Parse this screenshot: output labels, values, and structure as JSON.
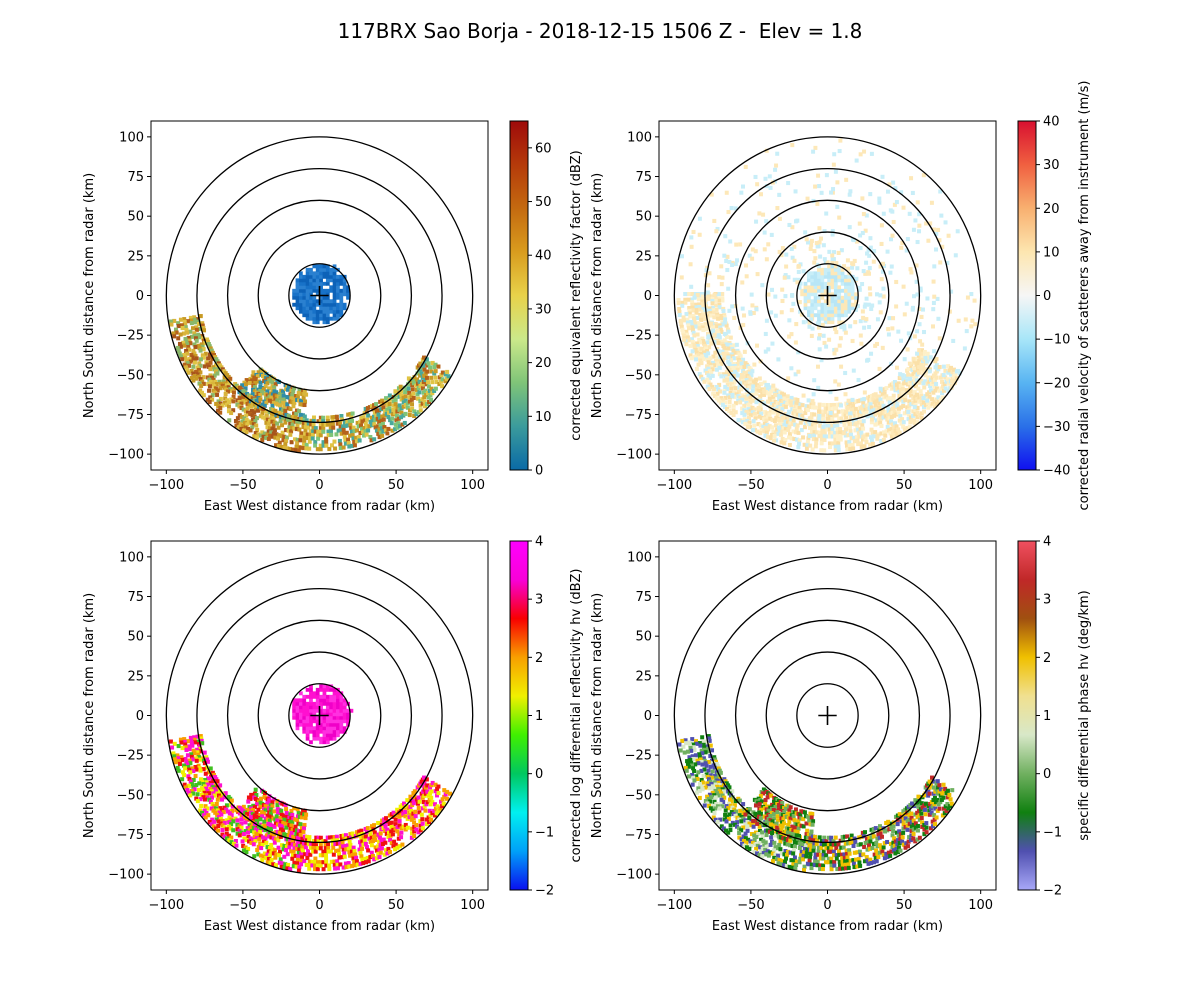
{
  "figure_title": "117BRX Sao Borja - 2018-12-15 1506 Z -  Elev = 1.8",
  "chart_data": [
    {
      "type": "heatmap",
      "name": "reflectivity",
      "xlabel": "East West distance from radar (km)",
      "ylabel": "North South distance from radar (km)",
      "xlim": [
        -110,
        110
      ],
      "ylim": [
        -110,
        110
      ],
      "xticks": [
        -100,
        -50,
        0,
        50,
        100
      ],
      "yticks": [
        -100,
        -75,
        -50,
        -25,
        0,
        25,
        50,
        75,
        100
      ],
      "range_rings_km": [
        20,
        40,
        60,
        80,
        100
      ],
      "colorbar": {
        "label": "corrected equivalent reflectivity factor (dBZ)",
        "range": [
          0,
          65
        ],
        "ticks": [
          0,
          10,
          20,
          30,
          40,
          50,
          60
        ],
        "colors": [
          "#0a6aa6",
          "#3b9b9c",
          "#7fc478",
          "#cbe98a",
          "#e8d24a",
          "#d99c1e",
          "#c46a10",
          "#b53a0a",
          "#9e0a0a"
        ]
      },
      "regions": [
        {
          "kind": "near",
          "rmax": 20,
          "colors": [
            "#1872c8",
            "#2a80d0",
            "#0d62b8"
          ]
        },
        {
          "kind": "band",
          "rmin": 80,
          "rmax": 100,
          "amin": 190,
          "amax": 262,
          "colors": [
            "#c89a24",
            "#d9b43a",
            "#b5621a",
            "#8ab86a",
            "#e0c445",
            "#a8551a"
          ]
        },
        {
          "kind": "band",
          "rmin": 62,
          "rmax": 84,
          "amin": 228,
          "amax": 262,
          "colors": [
            "#c89a24",
            "#8ab86a",
            "#b5621a",
            "#2e8ca8",
            "#d9b43a"
          ]
        },
        {
          "kind": "band",
          "rmin": 78,
          "rmax": 100,
          "amin": 262,
          "amax": 330,
          "colors": [
            "#7fc478",
            "#c89a24",
            "#b5621a",
            "#4aa89a",
            "#e0c445"
          ]
        }
      ]
    },
    {
      "type": "heatmap",
      "name": "velocity",
      "xlabel": "East West distance from radar (km)",
      "ylabel": "North South distance from radar (km)",
      "xlim": [
        -110,
        110
      ],
      "ylim": [
        -110,
        110
      ],
      "xticks": [
        -100,
        -50,
        0,
        50,
        100
      ],
      "yticks": [
        -100,
        -75,
        -50,
        -25,
        0,
        25,
        50,
        75,
        100
      ],
      "range_rings_km": [
        20,
        40,
        60,
        80,
        100
      ],
      "colorbar": {
        "label": "corrected radial velocity of scatterers away from instrument (m/s)",
        "range": [
          -40,
          40
        ],
        "ticks": [
          -40,
          -30,
          -20,
          -10,
          0,
          10,
          20,
          30,
          40
        ],
        "colors": [
          "#1010f0",
          "#2a70e8",
          "#58b4f2",
          "#a8e6f8",
          "#f6f6f6",
          "#fde6b0",
          "#f8b070",
          "#f06040",
          "#d81030"
        ]
      },
      "regions": [
        {
          "kind": "near",
          "rmax": 20,
          "colors": [
            "#c8eef8",
            "#fde8b8",
            "#b8e6f6"
          ]
        },
        {
          "kind": "band",
          "rmin": 70,
          "rmax": 100,
          "amin": 180,
          "amax": 330,
          "colors": [
            "#fde8b8",
            "#fbe0a8",
            "#c8eef8",
            "#fef0c8"
          ]
        },
        {
          "kind": "sparse",
          "rmin": 20,
          "rmax": 100,
          "amin": 0,
          "amax": 360,
          "colors": [
            "#fde8b8",
            "#c8eef8"
          ]
        }
      ]
    },
    {
      "type": "heatmap",
      "name": "differential_reflectivity",
      "xlabel": "East West distance from radar (km)",
      "ylabel": "North South distance from radar (km)",
      "xlim": [
        -110,
        110
      ],
      "ylim": [
        -110,
        110
      ],
      "xticks": [
        -100,
        -50,
        0,
        50,
        100
      ],
      "yticks": [
        -100,
        -75,
        -50,
        -25,
        0,
        25,
        50,
        75,
        100
      ],
      "range_rings_km": [
        20,
        40,
        60,
        80,
        100
      ],
      "colorbar": {
        "label": "corrected log differential reflectivity hv (dBZ)",
        "range": [
          -2,
          4
        ],
        "ticks": [
          -2,
          -1,
          0,
          1,
          2,
          3,
          4
        ],
        "colors": [
          "#0a10f0",
          "#00a0f8",
          "#00f0f0",
          "#00c860",
          "#40f000",
          "#f0f000",
          "#f8a000",
          "#f80000",
          "#f800d8",
          "#ff00ff"
        ]
      },
      "regions": [
        {
          "kind": "near",
          "rmax": 20,
          "colors": [
            "#ff10d0",
            "#ff30e0",
            "#f000c8"
          ]
        },
        {
          "kind": "band",
          "rmin": 80,
          "rmax": 100,
          "amin": 190,
          "amax": 262,
          "colors": [
            "#ff10d0",
            "#f01010",
            "#f8a000",
            "#f0f000",
            "#40c020",
            "#ff10d0"
          ]
        },
        {
          "kind": "band",
          "rmin": 62,
          "rmax": 84,
          "amin": 228,
          "amax": 262,
          "colors": [
            "#ff10d0",
            "#f01010",
            "#f8a000",
            "#40c020"
          ]
        },
        {
          "kind": "band",
          "rmin": 78,
          "rmax": 100,
          "amin": 262,
          "amax": 330,
          "colors": [
            "#ff10d0",
            "#f01010",
            "#f0f000",
            "#f8a000"
          ]
        }
      ]
    },
    {
      "type": "heatmap",
      "name": "specific_differential_phase",
      "xlabel": "East West distance from radar (km)",
      "ylabel": "North South distance from radar (km)",
      "xlim": [
        -110,
        110
      ],
      "ylim": [
        -110,
        110
      ],
      "xticks": [
        -100,
        -50,
        0,
        50,
        100
      ],
      "yticks": [
        -100,
        -75,
        -50,
        -25,
        0,
        25,
        50,
        75,
        100
      ],
      "range_rings_km": [
        20,
        40,
        60,
        80,
        100
      ],
      "colorbar": {
        "label": "specific differential phase hv (deg/km)",
        "range": [
          -2,
          4
        ],
        "ticks": [
          -2,
          -1,
          0,
          1,
          2,
          3,
          4
        ],
        "colors": [
          "#a8a8f8",
          "#5050b0",
          "#108010",
          "#70b060",
          "#d8e8c8",
          "#f0e090",
          "#f0c000",
          "#a05010",
          "#c02828",
          "#f05060"
        ]
      },
      "regions": [
        {
          "kind": "band",
          "rmin": 80,
          "rmax": 100,
          "amin": 190,
          "amax": 262,
          "colors": [
            "#70b060",
            "#108010",
            "#f0c000",
            "#d8e8c8",
            "#5050b0"
          ]
        },
        {
          "kind": "band",
          "rmin": 64,
          "rmax": 84,
          "amin": 228,
          "amax": 262,
          "colors": [
            "#c02828",
            "#f0c000",
            "#70b060",
            "#108010"
          ]
        },
        {
          "kind": "band",
          "rmin": 78,
          "rmax": 100,
          "amin": 262,
          "amax": 330,
          "colors": [
            "#70b060",
            "#108010",
            "#f0c000",
            "#c02828",
            "#5050b0"
          ]
        }
      ]
    }
  ]
}
